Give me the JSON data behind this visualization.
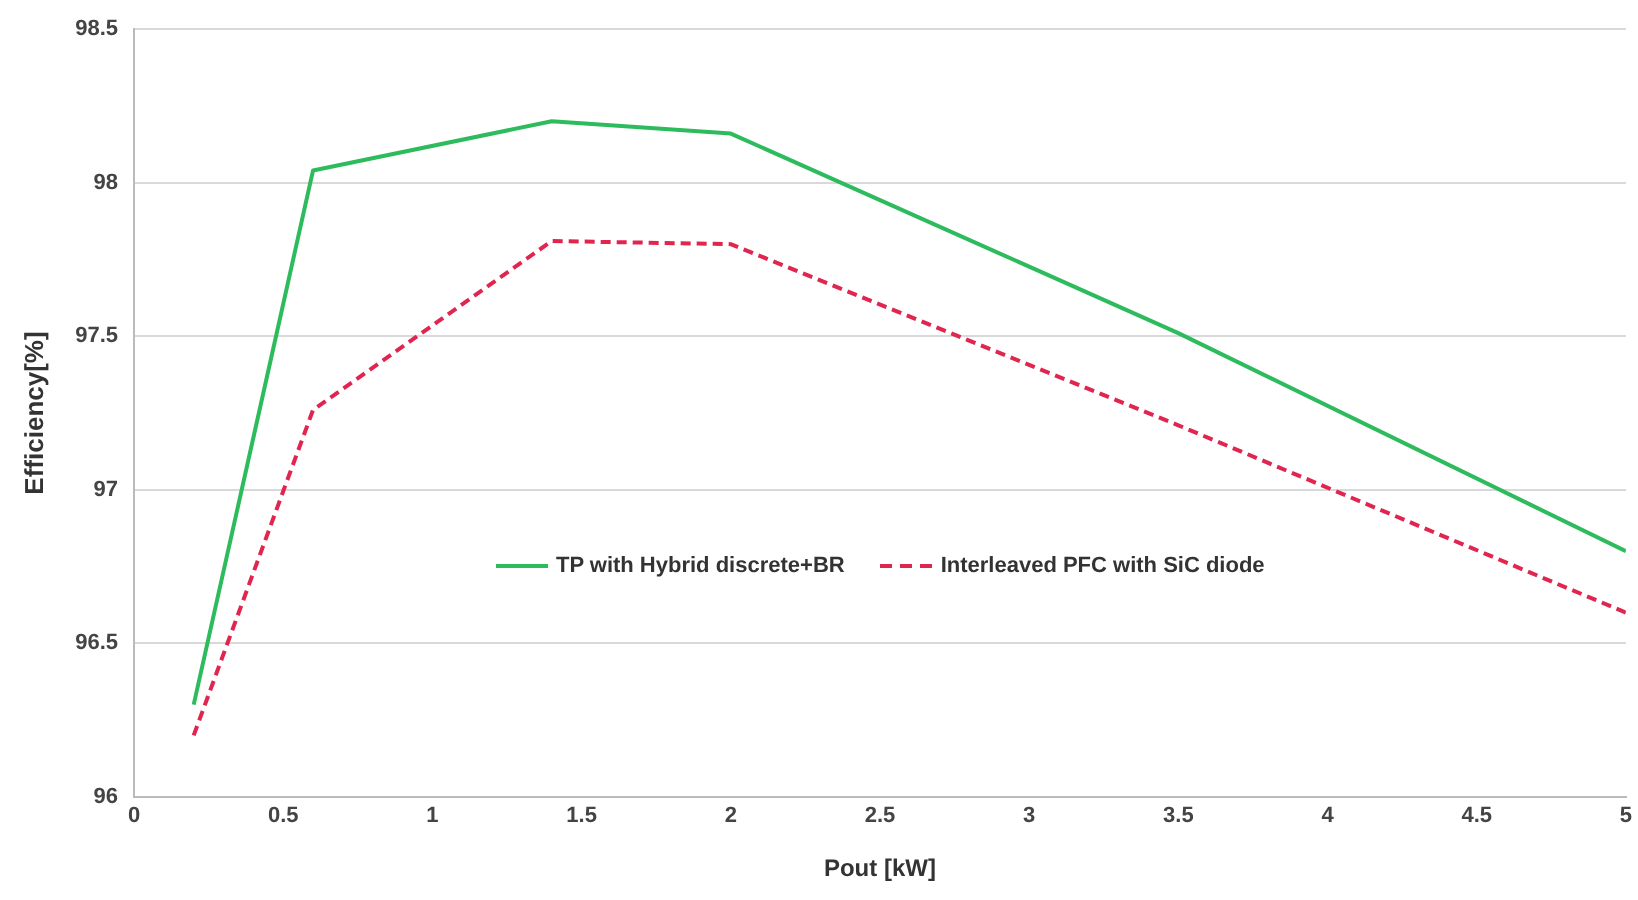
{
  "chart_data": {
    "type": "line",
    "xlabel": "Pout [kW]",
    "ylabel": "Efficiency[%]",
    "xlim": [
      0,
      5
    ],
    "xticks": [
      0,
      0.5,
      1,
      1.5,
      2,
      2.5,
      3,
      3.5,
      4,
      4.5,
      5
    ],
    "ylim": [
      96,
      98.5
    ],
    "yticks": [
      96,
      96.5,
      97,
      97.5,
      98,
      98.5
    ],
    "grid": "y",
    "legend": "bottom",
    "marker": "none",
    "x": [
      0.2,
      0.6,
      1.4,
      2,
      3.5,
      5
    ],
    "series": [
      {
        "name": "TP with Hybrid discrete+BR",
        "color": "#2dbb5d",
        "line_style": "solid",
        "values": [
          96.3,
          98.04,
          98.2,
          98.16,
          97.51,
          96.8
        ]
      },
      {
        "name": "Interleaved PFC with SiC diode",
        "color": "#e0254f",
        "line_style": "dashed",
        "values": [
          96.2,
          97.26,
          97.81,
          97.8,
          97.21,
          96.6
        ]
      }
    ]
  }
}
